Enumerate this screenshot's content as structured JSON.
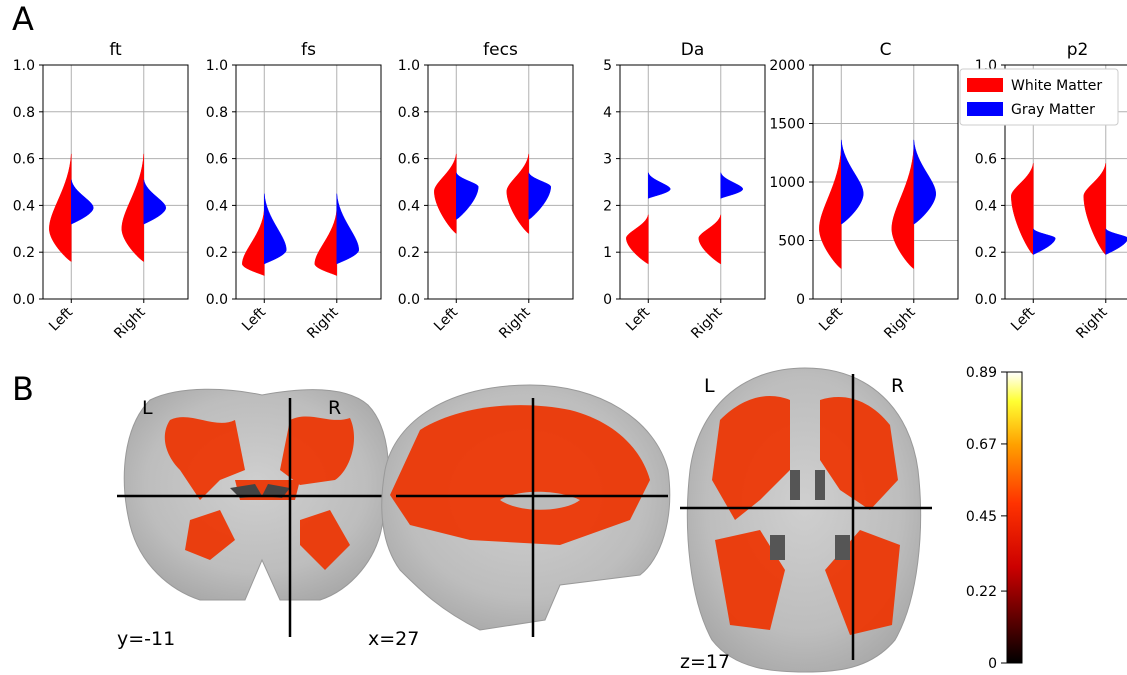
{
  "panel_letters": {
    "a": "A",
    "b": "B"
  },
  "colors": {
    "white_matter": "#ff0000",
    "gray_matter": "#0000ff",
    "grid": "#b0b0b0",
    "crosshair": "#000000"
  },
  "chart_data": [
    {
      "type": "violin",
      "title": "ft",
      "categories": [
        "Left",
        "Right"
      ],
      "ylim": [
        0,
        1.0
      ],
      "yticks": [
        "0.0",
        "0.2",
        "0.4",
        "0.6",
        "0.8",
        "1.0"
      ],
      "grid": true,
      "series": [
        {
          "name": "White Matter",
          "side": "left",
          "color": "#ff0000",
          "groups": [
            {
              "min": 0.16,
              "max": 0.62,
              "mode": 0.3
            },
            {
              "min": 0.16,
              "max": 0.62,
              "mode": 0.3
            }
          ]
        },
        {
          "name": "Gray Matter",
          "side": "right",
          "color": "#0000ff",
          "groups": [
            {
              "min": 0.32,
              "max": 0.51,
              "mode": 0.39
            },
            {
              "min": 0.32,
              "max": 0.51,
              "mode": 0.39
            }
          ]
        }
      ]
    },
    {
      "type": "violin",
      "title": "fs",
      "categories": [
        "Left",
        "Right"
      ],
      "ylim": [
        0,
        1.0
      ],
      "yticks": [
        "0.0",
        "0.2",
        "0.4",
        "0.6",
        "0.8",
        "1.0"
      ],
      "grid": true,
      "series": [
        {
          "name": "White Matter",
          "side": "left",
          "color": "#ff0000",
          "groups": [
            {
              "min": 0.1,
              "max": 0.38,
              "mode": 0.15
            },
            {
              "min": 0.1,
              "max": 0.38,
              "mode": 0.15
            }
          ]
        },
        {
          "name": "Gray Matter",
          "side": "right",
          "color": "#0000ff",
          "groups": [
            {
              "min": 0.15,
              "max": 0.45,
              "mode": 0.21
            },
            {
              "min": 0.15,
              "max": 0.45,
              "mode": 0.21
            }
          ]
        }
      ]
    },
    {
      "type": "violin",
      "title": "fecs",
      "categories": [
        "Left",
        "Right"
      ],
      "ylim": [
        0,
        1.0
      ],
      "yticks": [
        "0.0",
        "0.2",
        "0.4",
        "0.6",
        "0.8",
        "1.0"
      ],
      "grid": true,
      "series": [
        {
          "name": "White Matter",
          "side": "left",
          "color": "#ff0000",
          "groups": [
            {
              "min": 0.28,
              "max": 0.62,
              "mode": 0.46
            },
            {
              "min": 0.28,
              "max": 0.62,
              "mode": 0.46
            }
          ]
        },
        {
          "name": "Gray Matter",
          "side": "right",
          "color": "#0000ff",
          "groups": [
            {
              "min": 0.34,
              "max": 0.54,
              "mode": 0.48
            },
            {
              "min": 0.34,
              "max": 0.54,
              "mode": 0.48
            }
          ]
        }
      ]
    },
    {
      "type": "violin",
      "title": "Da",
      "categories": [
        "Left",
        "Right"
      ],
      "ylim": [
        0,
        5
      ],
      "yticks": [
        "0",
        "1",
        "2",
        "3",
        "4",
        "5"
      ],
      "grid": true,
      "series": [
        {
          "name": "White Matter",
          "side": "left",
          "color": "#ff0000",
          "groups": [
            {
              "min": 0.75,
              "max": 1.8,
              "mode": 1.3
            },
            {
              "min": 0.75,
              "max": 1.8,
              "mode": 1.3
            }
          ]
        },
        {
          "name": "Gray Matter",
          "side": "right",
          "color": "#0000ff",
          "groups": [
            {
              "min": 2.15,
              "max": 2.7,
              "mode": 2.35
            },
            {
              "min": 2.15,
              "max": 2.7,
              "mode": 2.35
            }
          ]
        }
      ]
    },
    {
      "type": "violin",
      "title": "C",
      "categories": [
        "Left",
        "Right"
      ],
      "ylim": [
        0,
        2000
      ],
      "yticks": [
        "0",
        "500",
        "1000",
        "1500",
        "2000"
      ],
      "grid": true,
      "series": [
        {
          "name": "White Matter",
          "side": "left",
          "color": "#ff0000",
          "groups": [
            {
              "min": 260,
              "max": 1290,
              "mode": 600
            },
            {
              "min": 260,
              "max": 1290,
              "mode": 600
            }
          ]
        },
        {
          "name": "Gray Matter",
          "side": "right",
          "color": "#0000ff",
          "groups": [
            {
              "min": 640,
              "max": 1360,
              "mode": 900
            },
            {
              "min": 640,
              "max": 1360,
              "mode": 900
            }
          ]
        }
      ]
    },
    {
      "type": "violin",
      "title": "p2",
      "categories": [
        "Left",
        "Right"
      ],
      "ylim": [
        0,
        1.0
      ],
      "yticks": [
        "0.0",
        "0.2",
        "0.4",
        "0.6",
        "0.8",
        "1.0"
      ],
      "grid": true,
      "legend": {
        "placement": "top-right",
        "entries": [
          "White Matter",
          "Gray Matter"
        ]
      },
      "series": [
        {
          "name": "White Matter",
          "side": "left",
          "color": "#ff0000",
          "groups": [
            {
              "min": 0.19,
              "max": 0.58,
              "mode": 0.44
            },
            {
              "min": 0.19,
              "max": 0.58,
              "mode": 0.44
            }
          ]
        },
        {
          "name": "Gray Matter",
          "side": "right",
          "color": "#0000ff",
          "groups": [
            {
              "min": 0.19,
              "max": 0.3,
              "mode": 0.26
            },
            {
              "min": 0.19,
              "max": 0.3,
              "mode": 0.26
            }
          ]
        }
      ]
    },
    {
      "type": "heatmap",
      "colorbar": {
        "min": 0,
        "max": 0.89,
        "ticks": [
          "0.89",
          "0.67",
          "0.45",
          "0.22",
          "0"
        ],
        "colormap": "hot"
      }
    }
  ],
  "brain_views": {
    "coronal": {
      "coord_label": "y=-11",
      "left_label": "L",
      "right_label": "R"
    },
    "sagittal": {
      "coord_label": "x=27"
    },
    "axial": {
      "coord_label": "z=17",
      "left_label": "L",
      "right_label": "R"
    }
  }
}
